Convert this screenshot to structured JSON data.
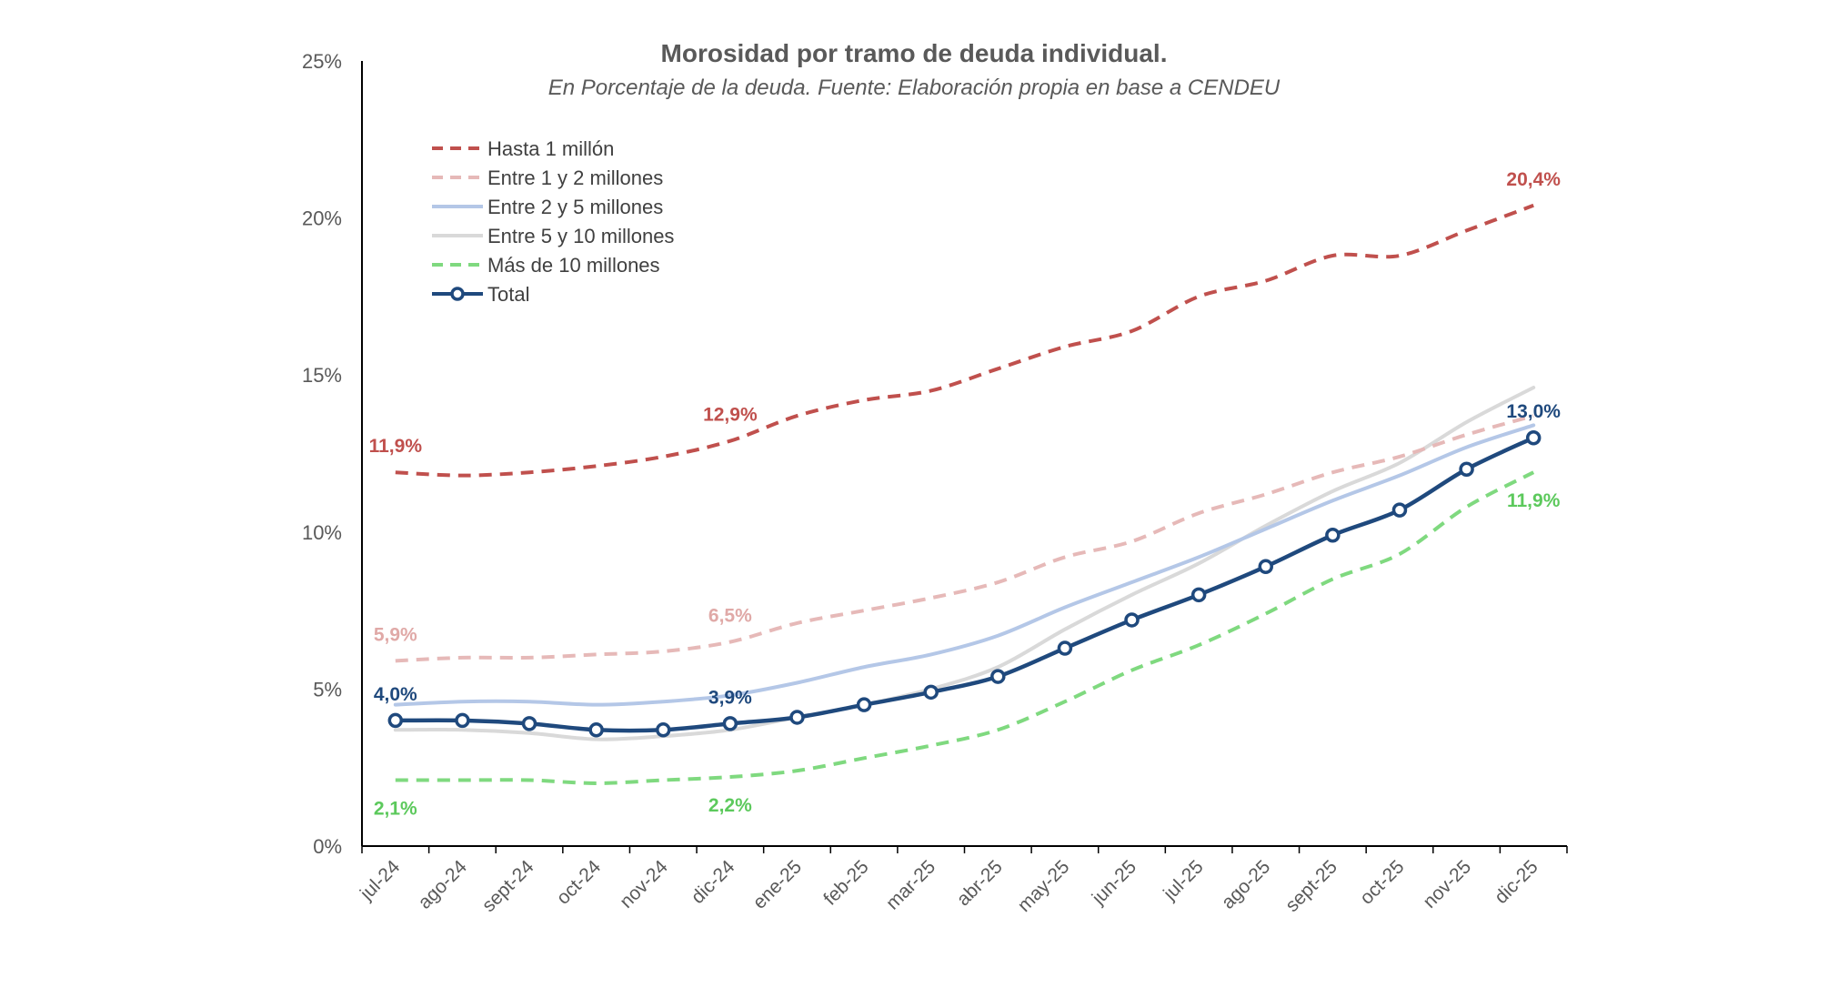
{
  "chart_data": {
    "type": "line",
    "title": "Morosidad por tramo de deuda individual.",
    "subtitle": "En Porcentaje de la deuda. Fuente: Elaboración propia en base a CENDEU",
    "xlabel": "",
    "ylabel": "",
    "ylim": [
      0,
      25
    ],
    "yticks": [
      0,
      5,
      10,
      15,
      20,
      25
    ],
    "ytick_labels": [
      "0%",
      "5%",
      "10%",
      "15%",
      "20%",
      "25%"
    ],
    "grid": false,
    "legend_position": "top-left",
    "categories": [
      "jul-24",
      "ago-24",
      "sept-24",
      "oct-24",
      "nov-24",
      "dic-24",
      "ene-25",
      "feb-25",
      "mar-25",
      "abr-25",
      "may-25",
      "jun-25",
      "jul-25",
      "ago-25",
      "sept-25",
      "oct-25",
      "nov-25",
      "dic-25"
    ],
    "series": [
      {
        "name": "Hasta 1 millón",
        "color": "#C0504D",
        "style": "dashed",
        "values": [
          11.9,
          11.8,
          11.9,
          12.1,
          12.4,
          12.9,
          13.7,
          14.2,
          14.5,
          15.2,
          15.9,
          16.4,
          17.5,
          18.0,
          18.8,
          18.8,
          19.6,
          20.4
        ],
        "labels": [
          {
            "index": 0,
            "text": "11,9%",
            "pos": "above"
          },
          {
            "index": 5,
            "text": "12,9%",
            "pos": "above"
          },
          {
            "index": 17,
            "text": "20,4%",
            "pos": "above"
          }
        ]
      },
      {
        "name": "Entre 1 y 2 millones",
        "color": "#E6B9B8",
        "style": "dashed",
        "values": [
          5.9,
          6.0,
          6.0,
          6.1,
          6.2,
          6.5,
          7.1,
          7.5,
          7.9,
          8.4,
          9.2,
          9.7,
          10.6,
          11.2,
          11.9,
          12.4,
          13.1,
          13.7
        ],
        "labels": [
          {
            "index": 0,
            "text": "5,9%",
            "pos": "above"
          },
          {
            "index": 5,
            "text": "6,5%",
            "pos": "above"
          }
        ]
      },
      {
        "name": "Entre 2 y 5 millones",
        "color": "#B4C7E7",
        "style": "solid",
        "values": [
          4.5,
          4.6,
          4.6,
          4.5,
          4.6,
          4.8,
          5.2,
          5.7,
          6.1,
          6.7,
          7.6,
          8.4,
          9.2,
          10.1,
          11.0,
          11.8,
          12.7,
          13.4
        ],
        "labels": []
      },
      {
        "name": "Entre 5 y 10 millones",
        "color": "#D9D9D9",
        "style": "solid",
        "values": [
          3.7,
          3.7,
          3.6,
          3.4,
          3.5,
          3.7,
          4.1,
          4.5,
          5.0,
          5.7,
          6.9,
          8.0,
          9.0,
          10.2,
          11.3,
          12.2,
          13.5,
          14.6
        ],
        "labels": []
      },
      {
        "name": "Más de 10 millones",
        "color": "#7FD97F",
        "style": "dashed",
        "values": [
          2.1,
          2.1,
          2.1,
          2.0,
          2.1,
          2.2,
          2.4,
          2.8,
          3.2,
          3.7,
          4.6,
          5.6,
          6.4,
          7.4,
          8.5,
          9.3,
          10.8,
          11.9
        ],
        "labels": [
          {
            "index": 0,
            "text": "2,1%",
            "pos": "below"
          },
          {
            "index": 5,
            "text": "2,2%",
            "pos": "below"
          },
          {
            "index": 17,
            "text": "11,9%",
            "pos": "below"
          }
        ]
      },
      {
        "name": "Total",
        "color": "#1F497D",
        "style": "solid-markers",
        "values": [
          4.0,
          4.0,
          3.9,
          3.7,
          3.7,
          3.9,
          4.1,
          4.5,
          4.9,
          5.4,
          6.3,
          7.2,
          8.0,
          8.9,
          9.9,
          10.7,
          12.0,
          13.0
        ],
        "labels": [
          {
            "index": 0,
            "text": "4,0%",
            "pos": "above"
          },
          {
            "index": 5,
            "text": "3,9%",
            "pos": "above"
          },
          {
            "index": 17,
            "text": "13,0%",
            "pos": "above"
          }
        ]
      }
    ]
  }
}
